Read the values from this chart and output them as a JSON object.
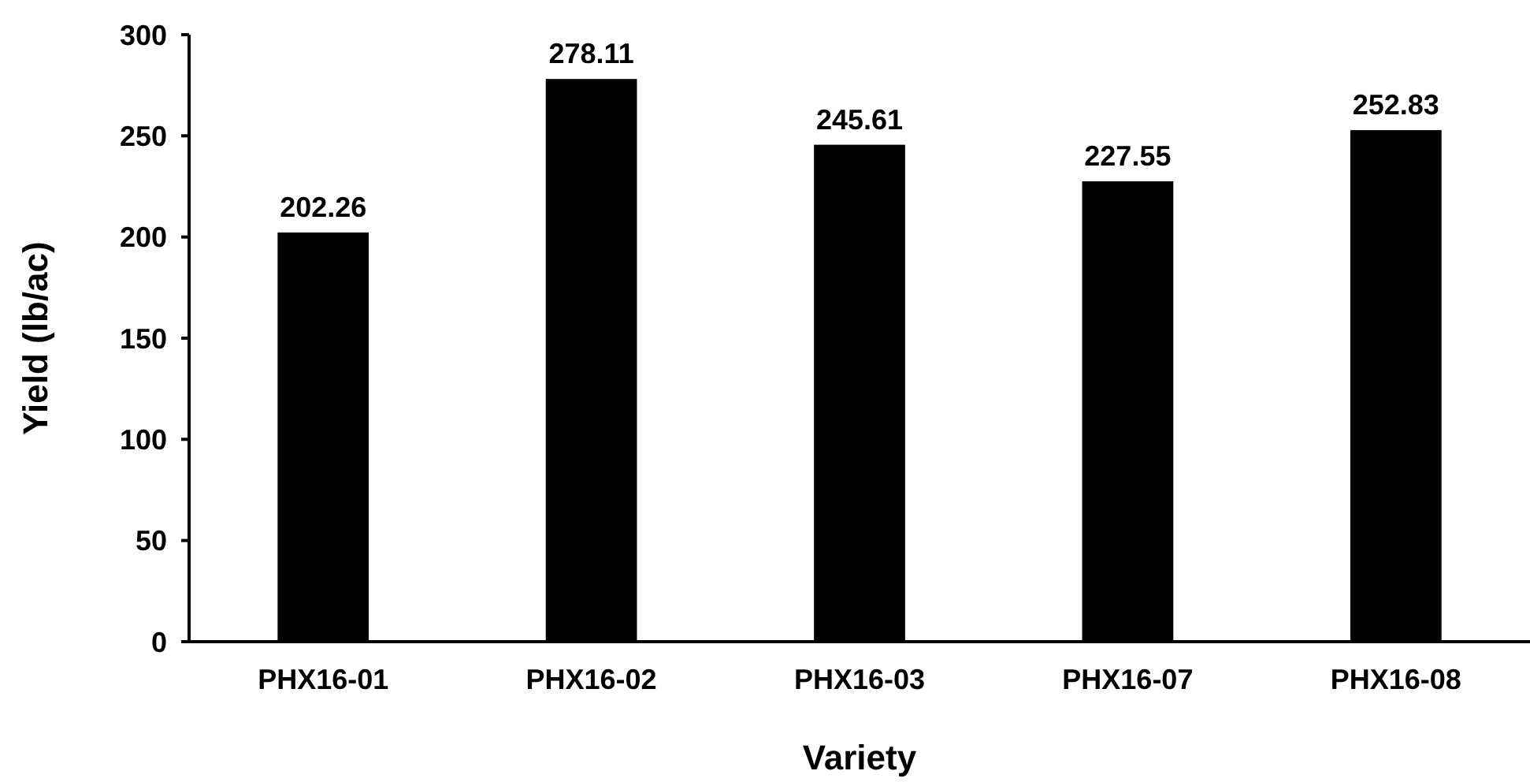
{
  "chart_data": {
    "type": "bar",
    "xlabel": "Variety",
    "ylabel": "Yield (lb/ac)",
    "categories": [
      "PHX16-01",
      "PHX16-02",
      "PHX16-03",
      "PHX16-07",
      "PHX16-08"
    ],
    "values": [
      202.26,
      278.11,
      245.61,
      227.55,
      252.83
    ],
    "color": "#000000",
    "ylim": [
      0,
      300
    ],
    "yticks": [
      0,
      50,
      100,
      150,
      200,
      250,
      300
    ],
    "grid": false,
    "data_labels": true
  }
}
